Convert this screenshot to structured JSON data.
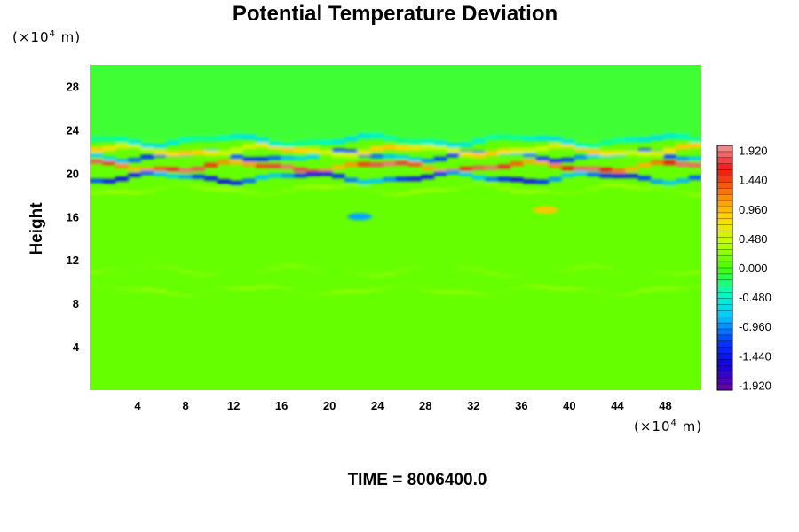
{
  "chart_data": {
    "type": "heatmap",
    "title": "Potential Temperature Deviation",
    "ylabel": "Height",
    "x_unit": {
      "prefix": "(×10",
      "exp": "4",
      "suffix": " m)"
    },
    "y_unit": {
      "prefix": "(×10",
      "exp": "4",
      "suffix": " m)"
    },
    "footer": "TIME = 8006400.0",
    "xlim": [
      0,
      51
    ],
    "ylim": [
      0,
      30
    ],
    "x_ticks": [
      4,
      8,
      12,
      16,
      20,
      24,
      28,
      32,
      36,
      40,
      44,
      48
    ],
    "y_ticks": [
      4,
      8,
      12,
      16,
      20,
      24,
      28
    ],
    "colorbar": {
      "ticks": [
        "1.920",
        "1.440",
        "0.960",
        "0.480",
        "0.000",
        "-0.480",
        "-0.960",
        "-1.440",
        "-1.920"
      ],
      "range": [
        -2.0,
        2.0
      ]
    },
    "features": [
      {
        "kind": "background",
        "value": 0.0
      },
      {
        "kind": "band",
        "y": 20.6,
        "value": 1.9,
        "note": "warm core near height 20-21"
      },
      {
        "kind": "band",
        "y": 21.6,
        "value": -1.3
      },
      {
        "kind": "band",
        "y": 19.6,
        "value": -1.5
      },
      {
        "kind": "band",
        "y": 22.1,
        "value": 0.9
      },
      {
        "kind": "band",
        "y": 23.0,
        "value": -0.6
      },
      {
        "kind": "band",
        "y": 18.5,
        "value": 0.3
      },
      {
        "kind": "band",
        "y": 11.0,
        "value": 0.2
      },
      {
        "kind": "band",
        "y": 9.2,
        "value": 0.25
      },
      {
        "kind": "spot",
        "x": 38,
        "y": 16.6,
        "value": 0.9
      },
      {
        "kind": "spot",
        "x": 22.5,
        "y": 16.0,
        "value": -0.9
      }
    ]
  }
}
